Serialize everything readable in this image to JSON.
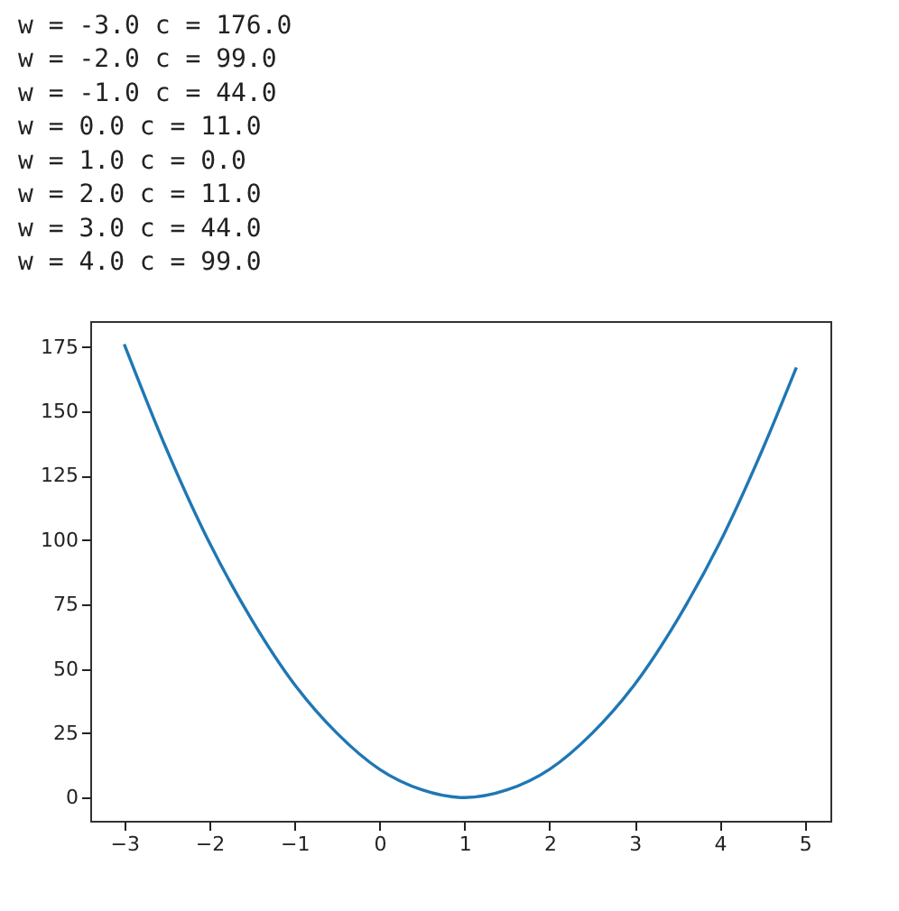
{
  "chart_data": {
    "type": "line",
    "annotations": [
      "w =  -3.0 c =  176.0",
      "w =  -2.0 c =  99.0",
      "w =  -1.0 c =  44.0",
      "w =  0.0 c =  11.0",
      "w =  1.0 c =  0.0",
      "w =  2.0 c =  11.0",
      "w =  3.0 c =  44.0",
      "w =  4.0 c =  99.0"
    ],
    "x": [
      -3,
      -2.5,
      -2,
      -1.5,
      -1,
      -0.5,
      0,
      0.5,
      1,
      1.5,
      2,
      2.5,
      3,
      3.5,
      4,
      4.5,
      4.9
    ],
    "series": [
      {
        "color": "#1f77b4",
        "values": [
          176,
          135,
          99,
          69,
          44,
          25,
          11,
          3,
          0,
          3,
          11,
          25,
          44,
          69,
          99,
          135,
          167
        ]
      }
    ],
    "xlim": [
      -3.4,
      5.3
    ],
    "ylim": [
      -9,
      185
    ],
    "xticks": [
      -3,
      -2,
      -1,
      0,
      1,
      2,
      3,
      4,
      5
    ],
    "yticks": [
      0,
      25,
      50,
      75,
      100,
      125,
      150,
      175
    ],
    "grid": false,
    "marker": "none",
    "line_style": "solid"
  }
}
